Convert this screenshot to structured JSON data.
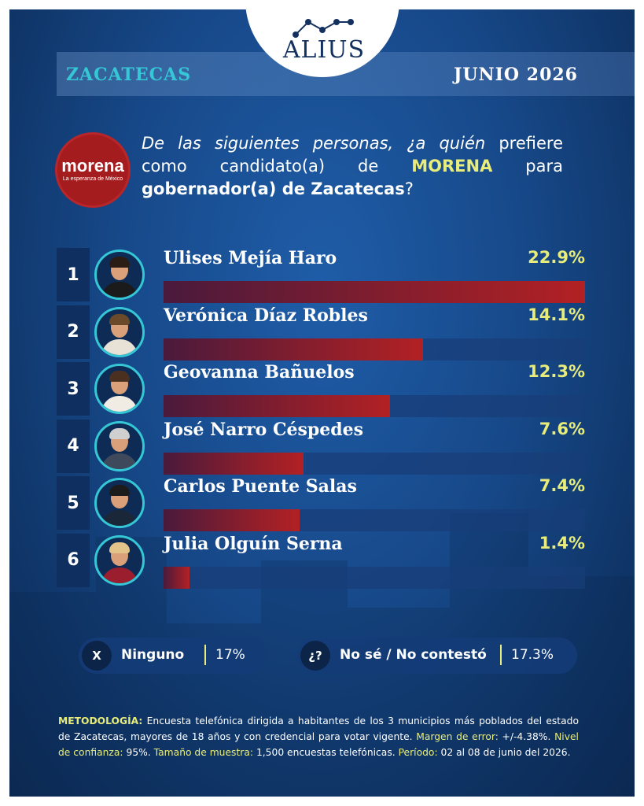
{
  "brand": {
    "name": "ALIUS"
  },
  "header": {
    "region": "ZACATECAS",
    "date": "JUNIO 2026"
  },
  "party": {
    "name": "morena",
    "tagline": "La esperanza de México"
  },
  "question": {
    "part1": "De las siguientes personas, ¿a quién",
    "part2": "prefiere como candidato(a) de",
    "party": "MORENA",
    "part3": "para",
    "office": "gobernador(a) de Zacatecas",
    "end": "?"
  },
  "chart_data": {
    "type": "bar",
    "categories": [
      "Ulises Mejía Haro",
      "Verónica Díaz Robles",
      "Geovanna Bañuelos",
      "José Narro Céspedes",
      "Carlos Puente Salas",
      "Julia Olguín Serna"
    ],
    "ranks": [
      "1",
      "2",
      "3",
      "4",
      "5",
      "6"
    ],
    "values": [
      22.9,
      14.1,
      12.3,
      7.6,
      7.4,
      1.4
    ],
    "labels": [
      "22.9%",
      "14.1%",
      "12.3%",
      "7.6%",
      "7.4%",
      "1.4%"
    ],
    "xlim": [
      0,
      22.9
    ]
  },
  "extras": {
    "none": {
      "icon": "X",
      "label": "Ninguno",
      "value": "17%"
    },
    "dont_know": {
      "icon": "¿?",
      "label": "No sé / No contestó",
      "value": "17.3%"
    }
  },
  "methodology": {
    "k1": "METODOLOGÍA:",
    "t1": "Encuesta telefónica dirigida a habitantes de los 3 municipios más poblados del estado de Zacatecas, mayores de 18 años y con credencial para votar vigente.",
    "k2": "Margen de error:",
    "t2": "+/-4.38%.",
    "k3": "Nivel de confianza:",
    "t3": "95%.",
    "k4": "Tamaño de muestra:",
    "t4": "1,500 encuestas telefónicas.",
    "k5": "Período:",
    "t5": "02 al 08 de junio del 2026."
  },
  "colors": {
    "accent_yellow": "#e8ec7a",
    "accent_cyan": "#35c7d6",
    "bar_red": "#b22124",
    "background_blue": "#17498a"
  }
}
